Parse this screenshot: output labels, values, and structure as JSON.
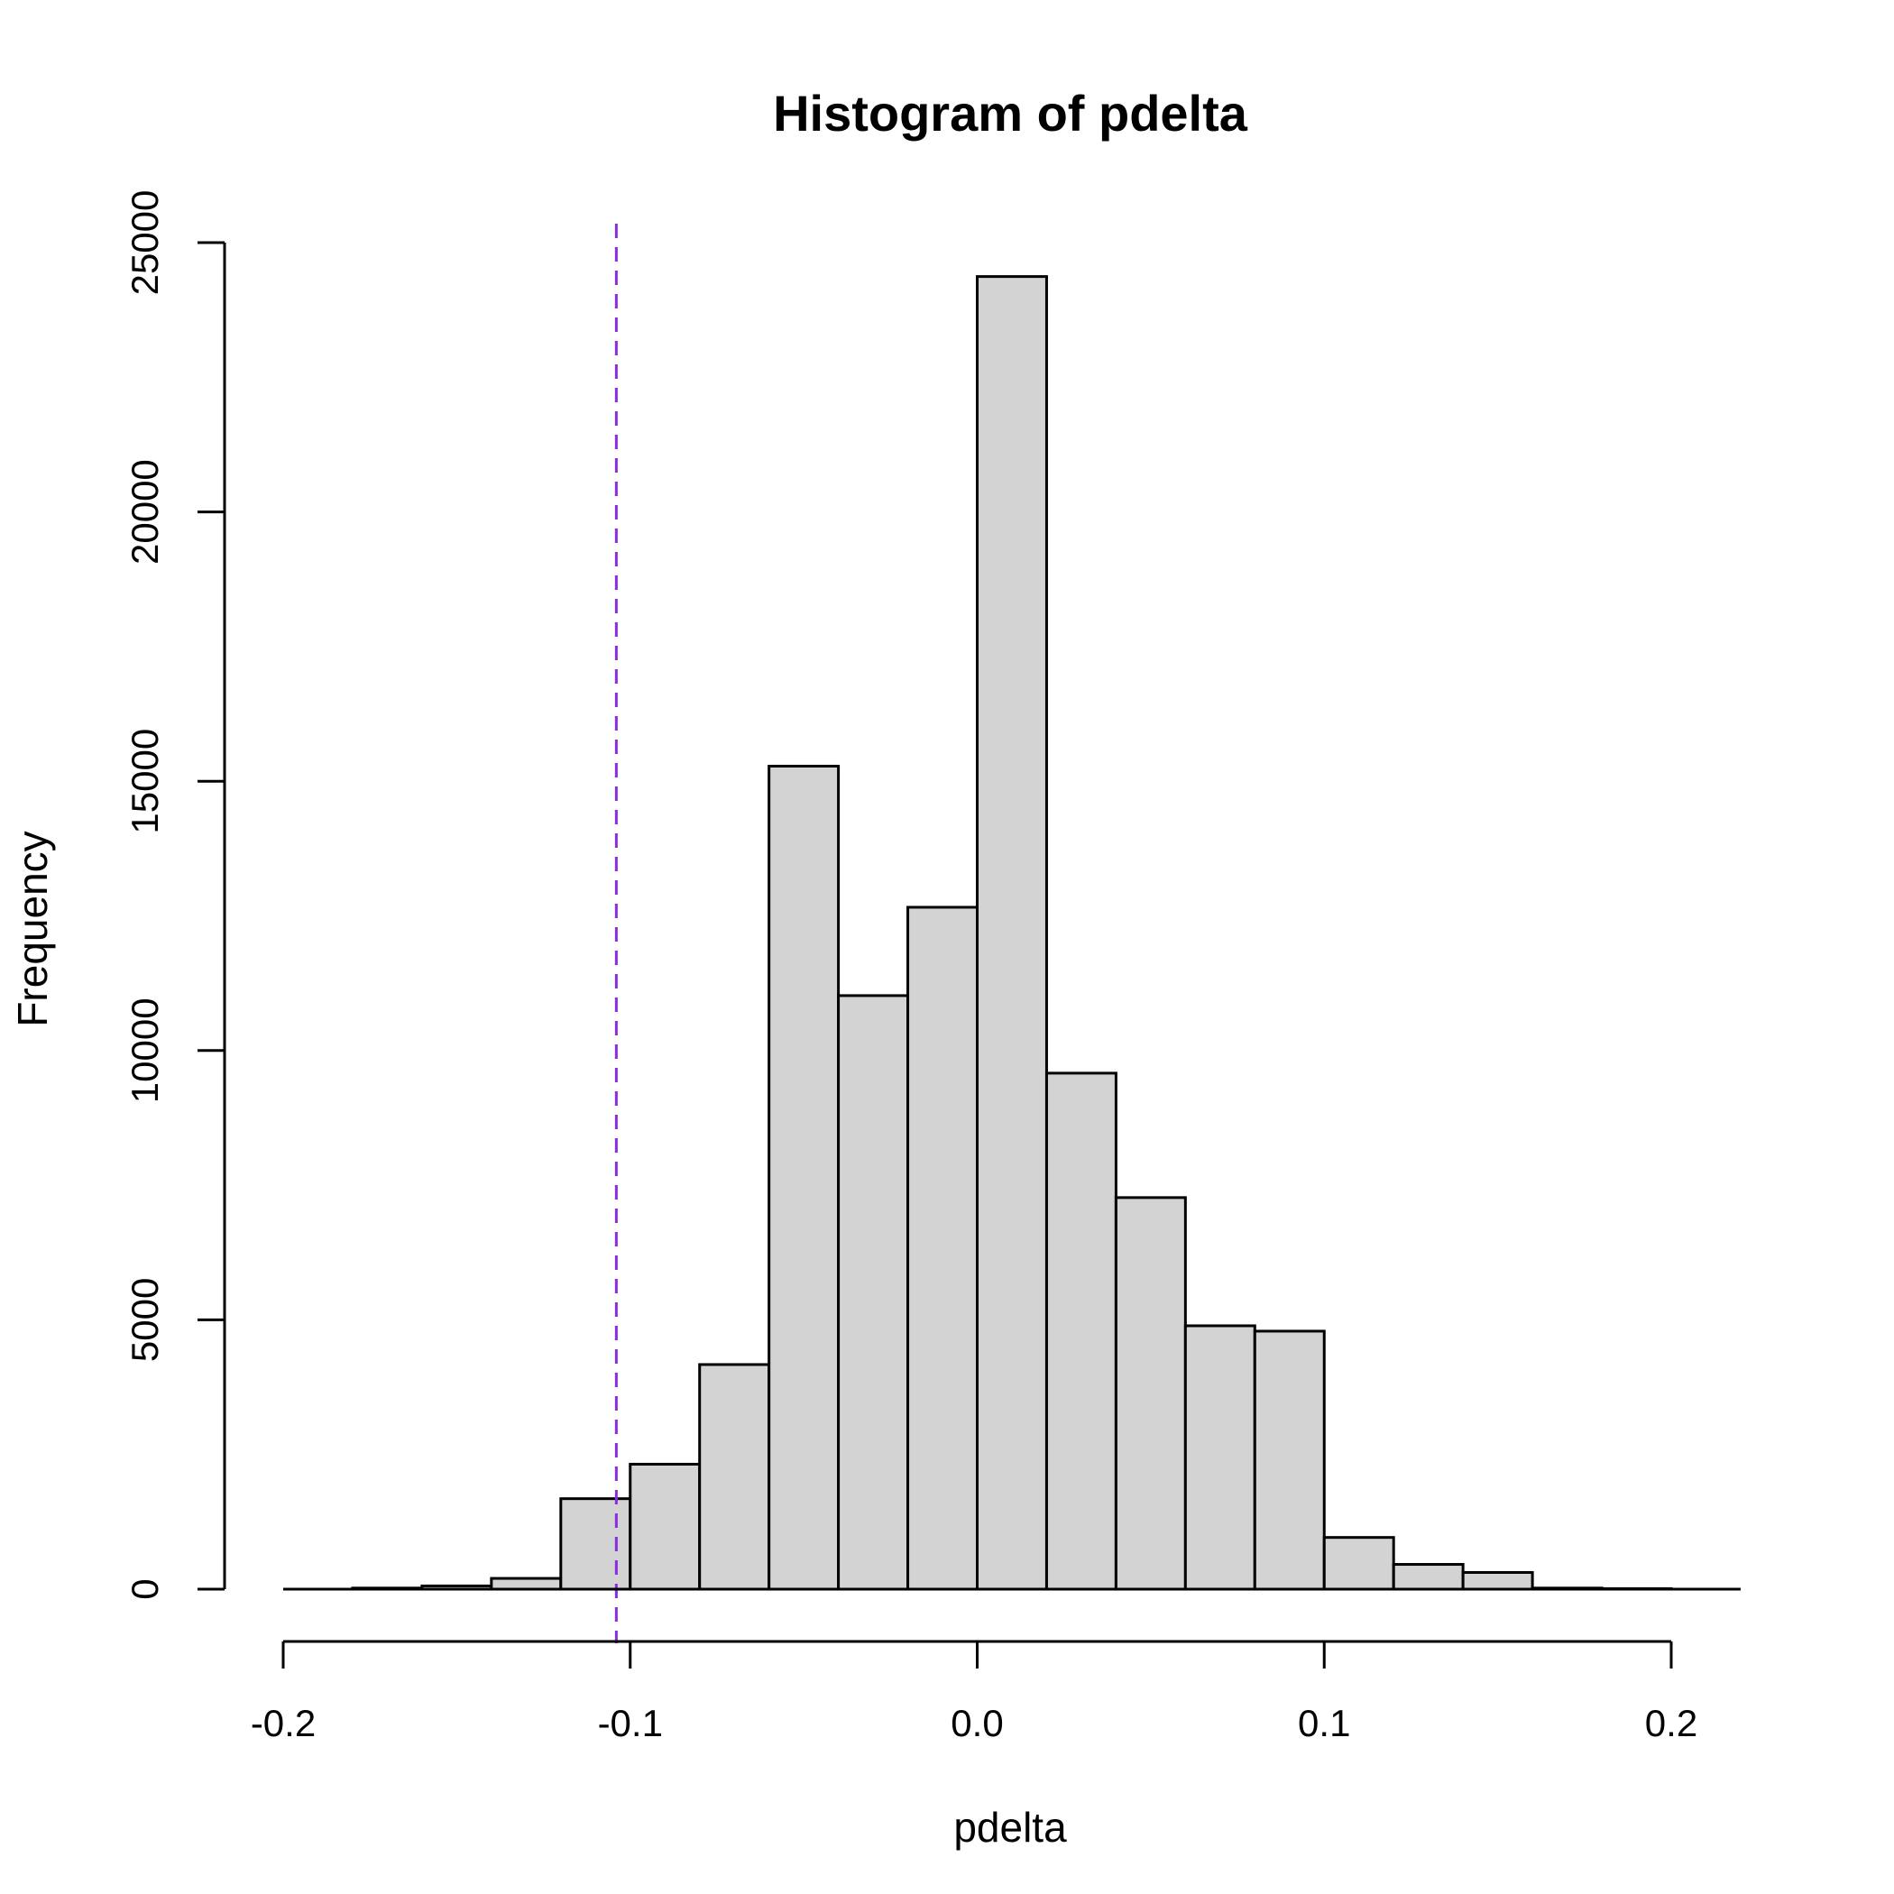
{
  "chart_data": {
    "type": "bar",
    "title": "Histogram of pdelta",
    "xlabel": "pdelta",
    "ylabel": "Frequency",
    "bin_edges": [
      -0.2,
      -0.18,
      -0.16,
      -0.14,
      -0.12,
      -0.1,
      -0.08,
      -0.06,
      -0.04,
      -0.02,
      0.0,
      0.02,
      0.04,
      0.06,
      0.08,
      0.1,
      0.12,
      0.14,
      0.16,
      0.18,
      0.2,
      0.22
    ],
    "values": [
      0,
      20,
      60,
      200,
      1680,
      2320,
      4170,
      15280,
      11020,
      12660,
      24370,
      9580,
      7270,
      4890,
      4790,
      960,
      460,
      310,
      20,
      10,
      0
    ],
    "xlim": [
      -0.2,
      0.22
    ],
    "ylim": [
      0,
      25000
    ],
    "x_ticks": [
      -0.2,
      -0.1,
      0.0,
      0.1,
      0.2
    ],
    "x_tick_labels": [
      "-0.2",
      "-0.1",
      "0.0",
      "0.1",
      "0.2"
    ],
    "y_ticks": [
      0,
      5000,
      10000,
      15000,
      20000,
      25000
    ],
    "y_tick_labels": [
      "0",
      "5000",
      "10000",
      "15000",
      "20000",
      "25000"
    ],
    "grid": false,
    "bar_color": "#d3d3d3",
    "reference_line": {
      "x": -0.104,
      "color": "#8a2be2",
      "style": "dashed"
    }
  }
}
